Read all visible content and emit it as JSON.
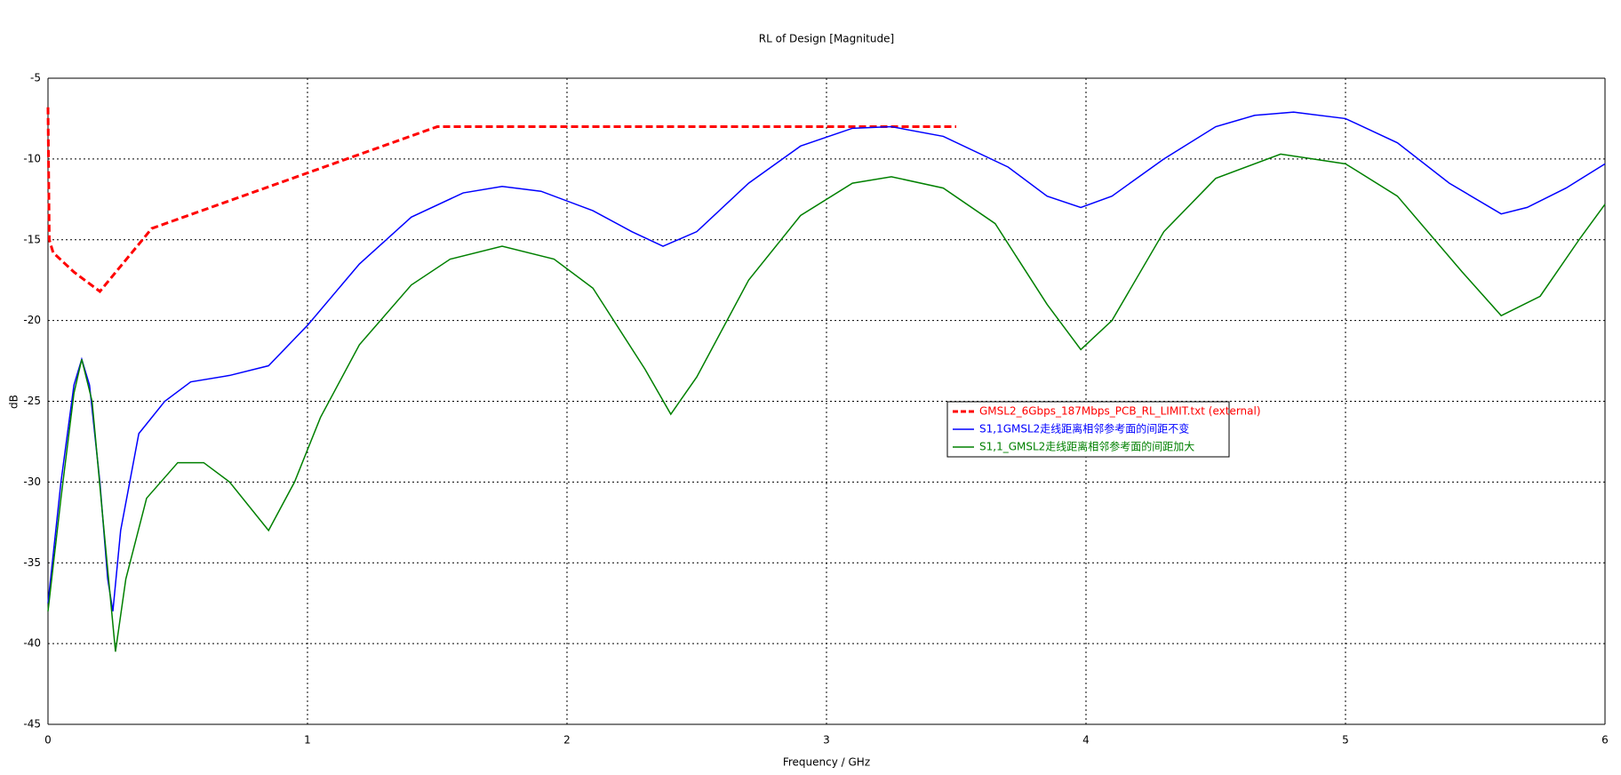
{
  "chart_data": {
    "type": "line",
    "title": "RL of Design [Magnitude]",
    "x_label": "Frequency / GHz",
    "y_label": "dB",
    "xlim": [
      0,
      6
    ],
    "xticks": [
      0,
      1,
      2,
      3,
      4,
      5,
      6
    ],
    "ylim": [
      -45,
      -5
    ],
    "yticks": [
      -5,
      -10,
      -15,
      -20,
      -25,
      -30,
      -35,
      -40,
      -45
    ],
    "grid": true,
    "series": [
      {
        "name": "GMSL2_6Gbps_187Mbps_PCB_RL_LIMIT.txt (external)",
        "color": "#ff0000",
        "dashed": true,
        "x": [
          0,
          0.005,
          0.02,
          0.1,
          0.2,
          0.4,
          1.5,
          3.5
        ],
        "values": [
          -6.8,
          -15,
          -15.8,
          -17,
          -18.2,
          -14.3,
          -8,
          -8
        ]
      },
      {
        "name": "S1,1GMSL2走线距离相邻参考面的间距不变",
        "color": "#0000ff",
        "x": [
          0,
          0.05,
          0.1,
          0.13,
          0.16,
          0.2,
          0.23,
          0.25,
          0.28,
          0.35,
          0.45,
          0.55,
          0.7,
          0.85,
          1,
          1.2,
          1.4,
          1.6,
          1.75,
          1.9,
          2.1,
          2.25,
          2.37,
          2.5,
          2.7,
          2.9,
          3.1,
          3.25,
          3.45,
          3.7,
          3.85,
          3.98,
          4.1,
          4.3,
          4.5,
          4.65,
          4.8,
          5,
          5.2,
          5.4,
          5.6,
          5.7,
          5.85,
          6
        ],
        "values": [
          -37.5,
          -30,
          -24,
          -22.4,
          -24,
          -30,
          -36,
          -38,
          -33,
          -27,
          -25,
          -23.8,
          -23.4,
          -22.8,
          -20.3,
          -16.5,
          -13.6,
          -12.1,
          -11.7,
          -12,
          -13.2,
          -14.5,
          -15.4,
          -14.5,
          -11.5,
          -9.2,
          -8.1,
          -8,
          -8.6,
          -10.5,
          -12.3,
          -13,
          -12.3,
          -10,
          -8,
          -7.3,
          -7.1,
          -7.5,
          -9,
          -11.5,
          -13.4,
          -13,
          -11.8,
          -10.3
        ]
      },
      {
        "name": "S1,1_GMSL2走线距离相邻参考面的间距加大",
        "color": "#008000",
        "x": [
          0,
          0.05,
          0.1,
          0.13,
          0.17,
          0.21,
          0.26,
          0.3,
          0.38,
          0.5,
          0.6,
          0.7,
          0.85,
          0.95,
          1.05,
          1.2,
          1.4,
          1.55,
          1.75,
          1.95,
          2.1,
          2.3,
          2.4,
          2.5,
          2.7,
          2.9,
          3.1,
          3.25,
          3.45,
          3.65,
          3.85,
          3.98,
          4.1,
          4.3,
          4.5,
          4.75,
          5,
          5.2,
          5.45,
          5.6,
          5.75,
          5.9,
          6
        ],
        "values": [
          -38,
          -31,
          -24.5,
          -22.4,
          -25,
          -32,
          -40.5,
          -36,
          -31,
          -28.8,
          -28.8,
          -30,
          -33,
          -30,
          -26,
          -21.5,
          -17.8,
          -16.2,
          -15.4,
          -16.2,
          -18,
          -23,
          -25.8,
          -23.5,
          -17.5,
          -13.5,
          -11.5,
          -11.1,
          -11.8,
          -14,
          -19,
          -21.8,
          -20,
          -14.5,
          -11.2,
          -9.7,
          -10.3,
          -12.3,
          -17,
          -19.7,
          -18.5,
          -15,
          -12.8
        ]
      }
    ]
  }
}
